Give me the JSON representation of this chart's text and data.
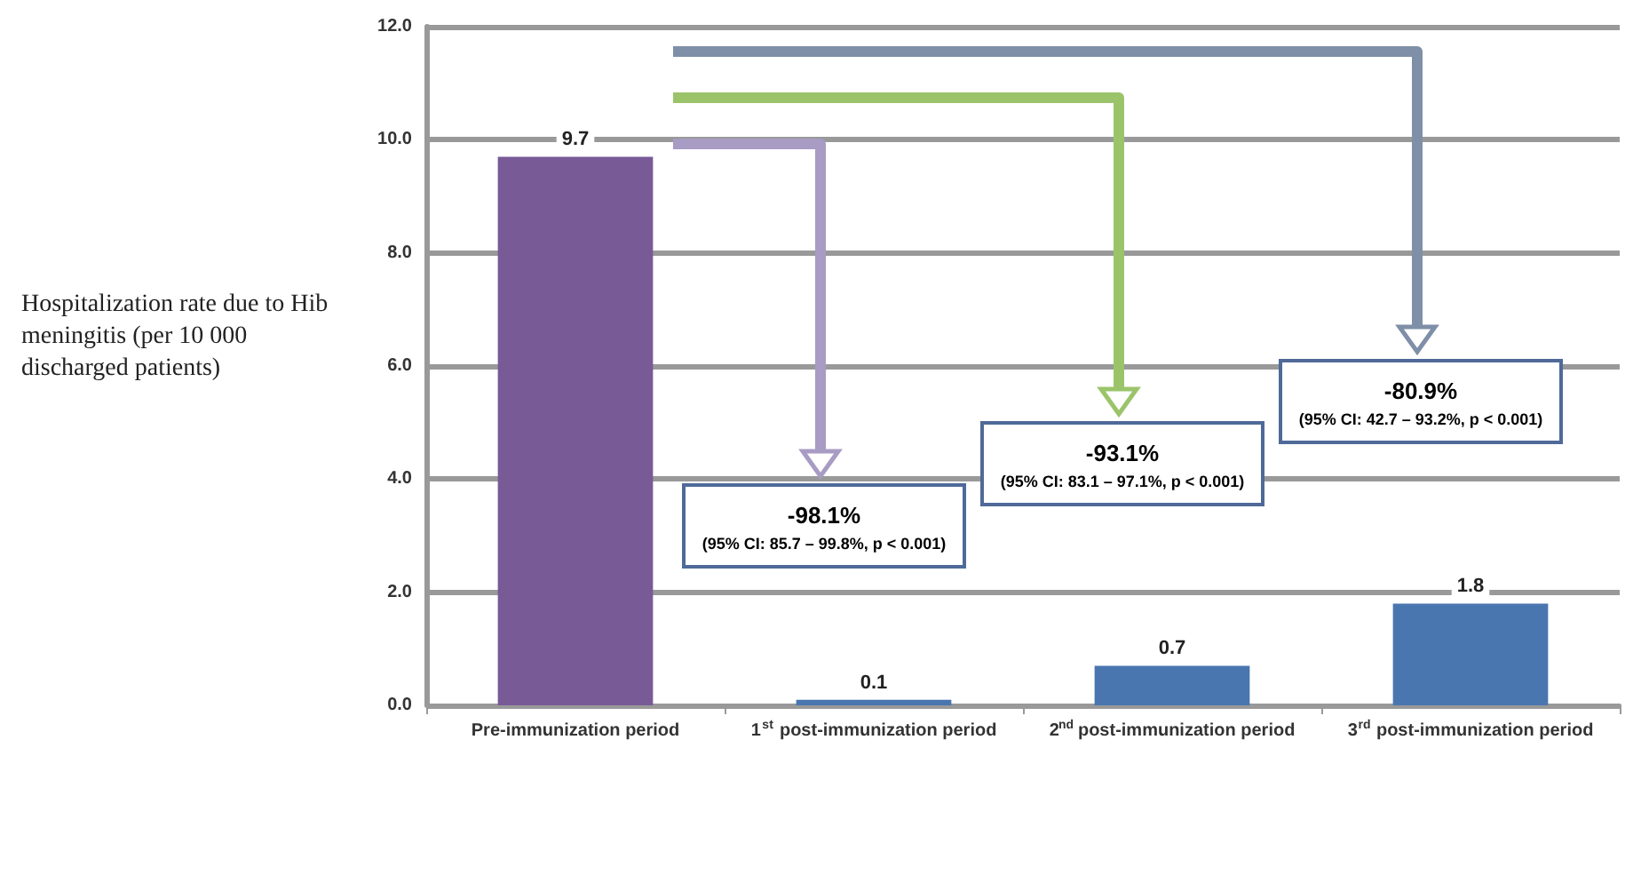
{
  "chart_data": {
    "type": "bar",
    "ylabel": "Hospitalization rate due to Hib meningitis (per 10 000 discharged patients)",
    "categories": [
      "Pre-immunization period",
      "1$^{st}$ post-immunization period",
      "2$^{nd}$ post-immunization period",
      "3$^{rd}$ post-immunization period"
    ],
    "values": [
      9.7,
      0.1,
      0.7,
      1.8
    ],
    "colors": [
      "#775a96",
      "#4a76b0",
      "#4a76b0",
      "#4a76b0"
    ],
    "ylim": [
      0,
      12
    ],
    "yticks": [
      {
        "value": 0,
        "label": "0.0"
      },
      {
        "value": 2,
        "label": "2.0"
      },
      {
        "value": 4,
        "label": "4.0"
      },
      {
        "value": 6,
        "label": "6.0"
      },
      {
        "value": 8,
        "label": "8.0"
      },
      {
        "value": 10,
        "label": "10.0"
      },
      {
        "value": 12,
        "label": "12.0"
      }
    ],
    "grid": "y",
    "data_labels": true,
    "annotations": [
      "-98.1% (95% CI: 85.7 – 99.8%, p < 0.001)",
      "-93.1% (95% CI: 83.1 – 97.1%, p < 0.001)",
      "-80.9% (95% CI: 42.7 – 93.2%, p < 0.001)"
    ]
  }
}
